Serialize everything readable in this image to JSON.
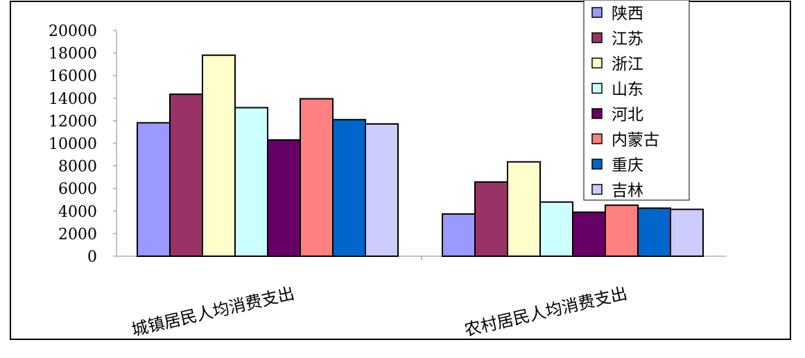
{
  "chart_data": {
    "type": "bar",
    "categories": [
      "城镇居民人均消费支出",
      "农村居民人均消费支出"
    ],
    "series": [
      {
        "name": "陕西",
        "color": "#9999ff",
        "values": [
          11820,
          3740
        ]
      },
      {
        "name": "江苏",
        "color": "#993366",
        "values": [
          14350,
          6580
        ]
      },
      {
        "name": "浙江",
        "color": "#ffffcc",
        "values": [
          17810,
          8360
        ]
      },
      {
        "name": "山东",
        "color": "#ccffff",
        "values": [
          13160,
          4800
        ]
      },
      {
        "name": "河北",
        "color": "#660066",
        "values": [
          10300,
          3900
        ]
      },
      {
        "name": "内蒙古",
        "color": "#ff8080",
        "values": [
          13950,
          4520
        ]
      },
      {
        "name": "重庆",
        "color": "#0066cc",
        "values": [
          12100,
          4260
        ]
      },
      {
        "name": "吉林",
        "color": "#ccccff",
        "values": [
          11720,
          4150
        ]
      }
    ],
    "y_ticks": [
      "0",
      "2000",
      "4000",
      "6000",
      "8000",
      "10000",
      "12000",
      "14000",
      "16000",
      "18000",
      "20000"
    ],
    "ylim": [
      0,
      20000
    ],
    "grid": false,
    "legend_position": "top-right",
    "title": "",
    "xlabel": "",
    "ylabel": ""
  }
}
